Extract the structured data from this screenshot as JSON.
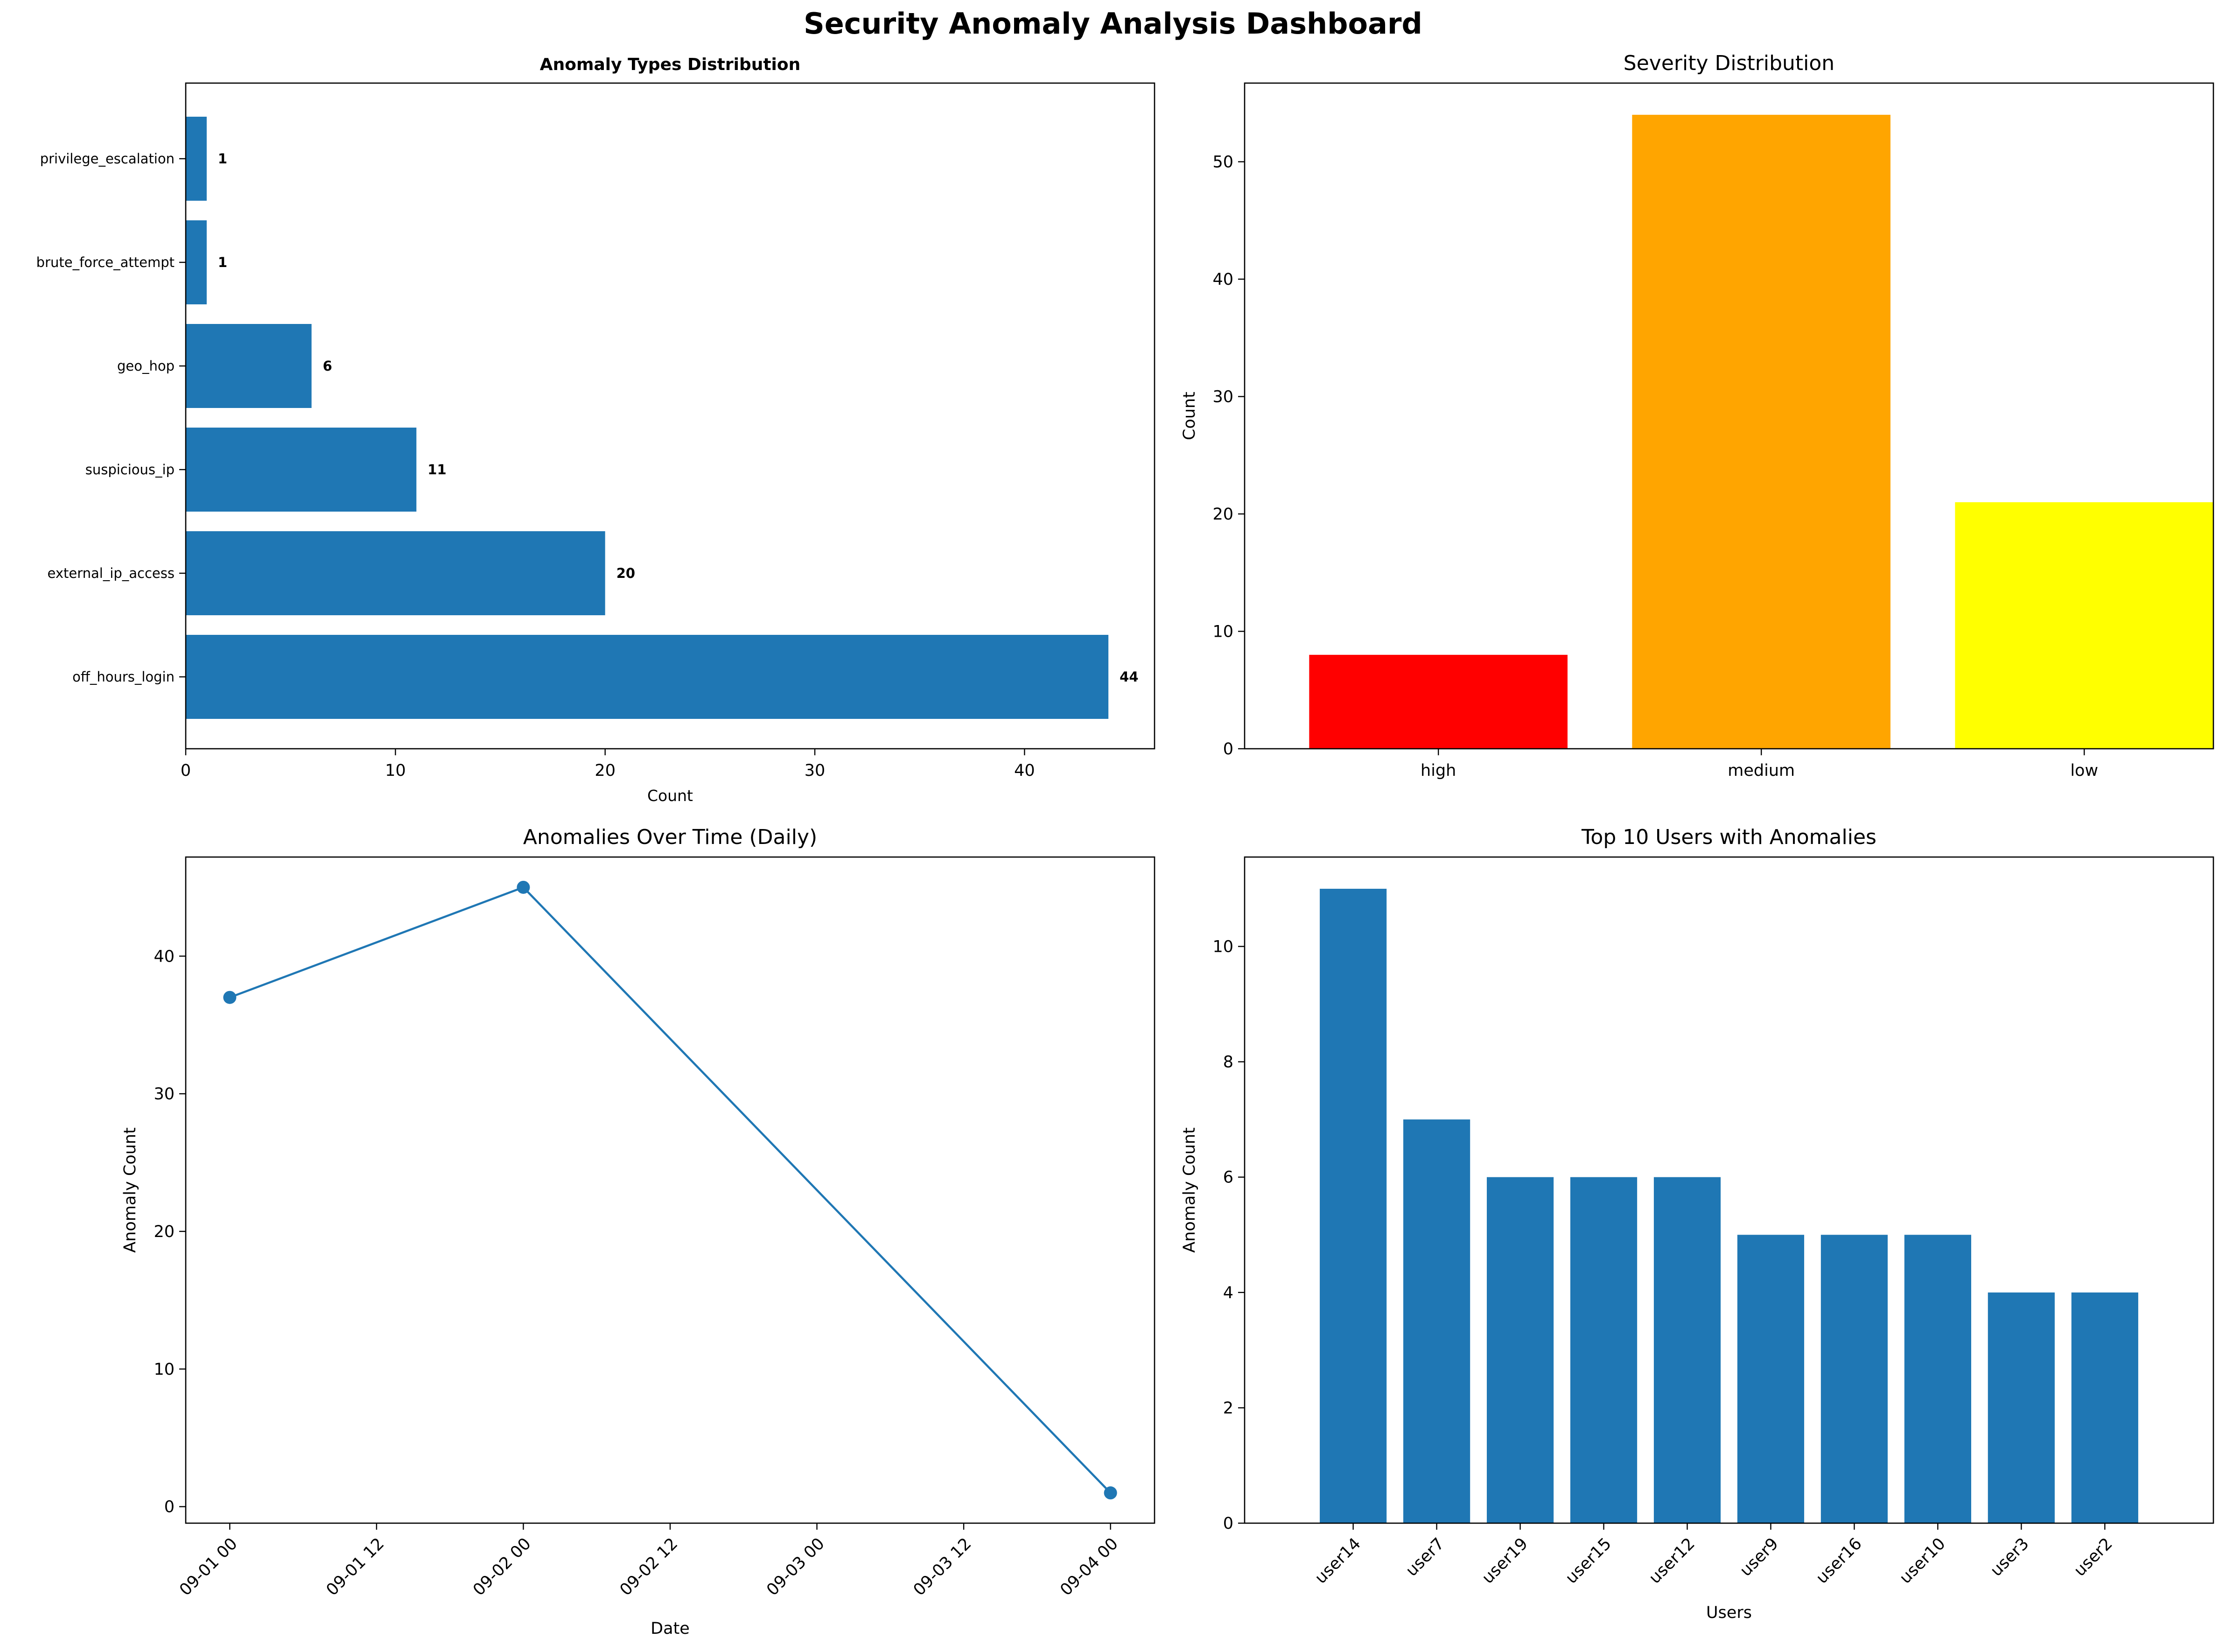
{
  "title": "Security Anomaly Analysis Dashboard",
  "colors": {
    "bar": "#1f77b4",
    "line": "#1f77b4"
  },
  "chart_data": [
    {
      "type": "bar",
      "orientation": "horizontal",
      "title": "Anomaly Types Distribution",
      "xlabel": "Count",
      "ylabel": "",
      "categories": [
        "off_hours_login",
        "external_ip_access",
        "suspicious_ip",
        "geo_hop",
        "brute_force_attempt",
        "privilege_escalation"
      ],
      "values": [
        44,
        20,
        11,
        6,
        1,
        1
      ],
      "data_labels": [
        "44",
        "20",
        "11",
        "6",
        "1",
        "1"
      ],
      "xlim": [
        0,
        46.2
      ],
      "xticks": [
        0,
        10,
        20,
        30,
        40
      ],
      "xtick_labels": [
        "0",
        "10",
        "20",
        "30",
        "40"
      ],
      "grid": false
    },
    {
      "type": "bar",
      "title": "Severity Distribution",
      "xlabel": "",
      "ylabel": "Count",
      "categories": [
        "high",
        "medium",
        "low"
      ],
      "values": [
        8,
        54,
        21
      ],
      "colors": [
        "#ff0000",
        "#ffa500",
        "#ffff00"
      ],
      "ylim": [
        0,
        56.7
      ],
      "yticks": [
        0,
        10,
        20,
        30,
        40,
        50
      ],
      "ytick_labels": [
        "0",
        "10",
        "20",
        "30",
        "40",
        "50"
      ],
      "grid": false
    },
    {
      "type": "line",
      "title": "Anomalies Over Time (Daily)",
      "xlabel": "Date",
      "ylabel": "Anomaly Count",
      "x": [
        "2023-09-01 00:00",
        "2023-09-02 00:00",
        "2023-09-04 00:00"
      ],
      "values": [
        37,
        45,
        1
      ],
      "xticks": [
        "2023-09-01 00:00",
        "2023-09-01 12:00",
        "2023-09-02 00:00",
        "2023-09-02 12:00",
        "2023-09-03 00:00",
        "2023-09-03 12:00",
        "2023-09-04 00:00"
      ],
      "xtick_labels": [
        "09-01 00",
        "09-01 12",
        "09-02 00",
        "09-02 12",
        "09-03 00",
        "09-03 12",
        "09-04 00"
      ],
      "ylim": [
        -1.2,
        47.2
      ],
      "yticks": [
        0,
        10,
        20,
        30,
        40
      ],
      "ytick_labels": [
        "0",
        "10",
        "20",
        "30",
        "40"
      ],
      "grid": false
    },
    {
      "type": "bar",
      "title": "Top 10 Users with Anomalies",
      "xlabel": "Users",
      "ylabel": "Anomaly Count",
      "categories": [
        "user14",
        "user7",
        "user19",
        "user15",
        "user12",
        "user9",
        "user16",
        "user10",
        "user3",
        "user2"
      ],
      "values": [
        11,
        7,
        6,
        6,
        6,
        5,
        5,
        5,
        4,
        4
      ],
      "ylim": [
        0,
        11.55
      ],
      "yticks": [
        0,
        2,
        4,
        6,
        8,
        10
      ],
      "ytick_labels": [
        "0",
        "2",
        "4",
        "6",
        "8",
        "10"
      ],
      "grid": false
    }
  ]
}
